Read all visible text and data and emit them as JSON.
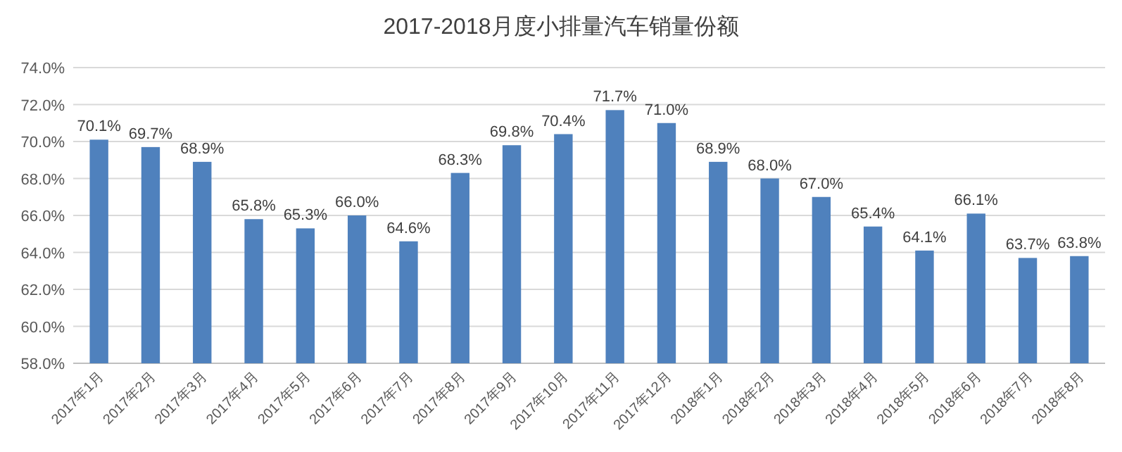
{
  "chart_data": {
    "type": "bar",
    "title": "2017-2018月度小排量汽车销量份额",
    "categories": [
      "2017年1月",
      "2017年2月",
      "2017年3月",
      "2017年4月",
      "2017年5月",
      "2017年6月",
      "2017年7月",
      "2017年8月",
      "2017年9月",
      "2017年10月",
      "2017年11月",
      "2017年12月",
      "2018年1月",
      "2018年2月",
      "2018年3月",
      "2018年4月",
      "2018年5月",
      "2018年6月",
      "2018年7月",
      "2018年8月"
    ],
    "values": [
      70.1,
      69.7,
      68.9,
      65.8,
      65.3,
      66.0,
      64.6,
      68.3,
      69.8,
      70.4,
      71.7,
      71.0,
      68.9,
      68.0,
      67.0,
      65.4,
      64.1,
      66.1,
      63.7,
      63.8
    ],
    "value_labels": [
      "70.1%",
      "69.7%",
      "68.9%",
      "65.8%",
      "65.3%",
      "66.0%",
      "64.6%",
      "68.3%",
      "69.8%",
      "70.4%",
      "71.7%",
      "71.0%",
      "68.9%",
      "68.0%",
      "67.0%",
      "65.4%",
      "64.1%",
      "66.1%",
      "63.7%",
      "63.8%"
    ],
    "color": "#4f81bd",
    "ylim": [
      58,
      74
    ],
    "yticks": [
      {
        "value": 58,
        "label": "58.0%"
      },
      {
        "value": 60,
        "label": "60.0%"
      },
      {
        "value": 62,
        "label": "62.0%"
      },
      {
        "value": 64,
        "label": "64.0%"
      },
      {
        "value": 66,
        "label": "66.0%"
      },
      {
        "value": 68,
        "label": "68.0%"
      },
      {
        "value": 70,
        "label": "70.0%"
      },
      {
        "value": 72,
        "label": "72.0%"
      },
      {
        "value": 74,
        "label": "74.0%"
      }
    ],
    "grid": "y"
  }
}
